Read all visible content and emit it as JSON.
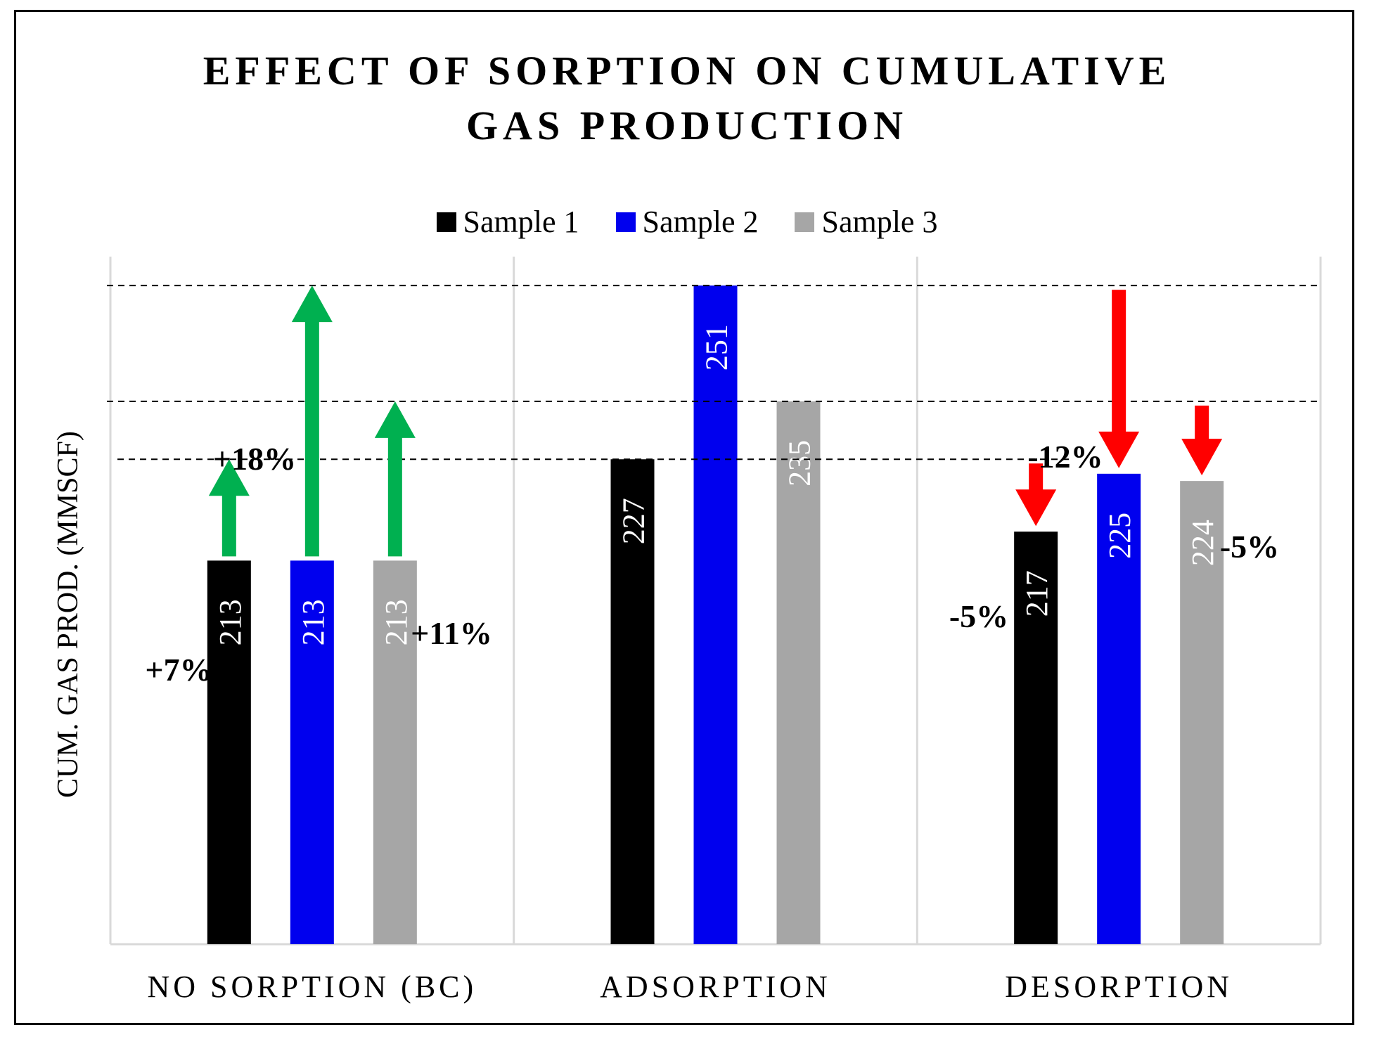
{
  "chart_data": {
    "type": "bar",
    "title_lines": [
      "EFFECT OF SORPTION ON CUMULATIVE",
      "GAS PRODUCTION"
    ],
    "xlabel": "",
    "ylabel": "CUM. GAS PROD. (MMSCF)",
    "ylim": [
      160,
      255
    ],
    "categories": [
      "NO SORPTION (BC)",
      "ADSORPTION",
      "DESORPTION"
    ],
    "series": [
      {
        "name": "Sample 1",
        "color": "#000000",
        "values": [
          213,
          227,
          217
        ]
      },
      {
        "name": "Sample 2",
        "color": "#0000EE",
        "values": [
          213,
          251,
          225
        ]
      },
      {
        "name": "Sample 3",
        "color": "#A6A6A6",
        "values": [
          213,
          235,
          224
        ]
      }
    ],
    "legend_position": "top-center",
    "reference_lines": [
      {
        "value": 251,
        "style": "dashed"
      },
      {
        "value": 235,
        "style": "dashed"
      },
      {
        "value": 227,
        "style": "dashed"
      }
    ],
    "annotations": [
      {
        "label": "+7%",
        "category": "NO SORPTION (BC)",
        "series": "Sample 1",
        "direction": "up",
        "from": 213,
        "to": 227,
        "color": "#00B050"
      },
      {
        "label": "+18%",
        "category": "NO SORPTION (BC)",
        "series": "Sample 2",
        "direction": "up",
        "from": 213,
        "to": 251,
        "color": "#00B050"
      },
      {
        "label": "+11%",
        "category": "NO SORPTION (BC)",
        "series": "Sample 3",
        "direction": "up",
        "from": 213,
        "to": 235,
        "color": "#00B050"
      },
      {
        "label": "-5%",
        "category": "DESORPTION",
        "series": "Sample 1",
        "direction": "down",
        "from": 227,
        "to": 217,
        "color": "#FF0000"
      },
      {
        "label": "-12%",
        "category": "DESORPTION",
        "series": "Sample 2",
        "direction": "down",
        "from": 251,
        "to": 225,
        "color": "#FF0000"
      },
      {
        "label": "-5%",
        "category": "DESORPTION",
        "series": "Sample 3",
        "direction": "down",
        "from": 235,
        "to": 224,
        "color": "#FF0000"
      }
    ]
  }
}
